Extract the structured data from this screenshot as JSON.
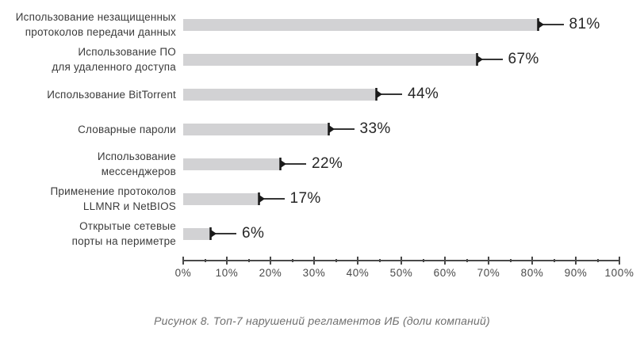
{
  "chart_data": {
    "type": "bar",
    "orientation": "horizontal",
    "title": "",
    "xlabel": "",
    "ylabel": "",
    "categories": [
      "Использование незащищенных\nпротоколов передачи данных",
      "Использование ПО\nдля удаленного доступа",
      "Использование BitTorrent",
      "Словарные пароли",
      "Использование\nмессенджеров",
      "Применение протоколов\nLLMNR и NetBIOS",
      "Открытые сетевые\nпорты на периметре"
    ],
    "values": [
      81,
      67,
      44,
      33,
      22,
      17,
      6
    ],
    "value_labels": [
      "81%",
      "67%",
      "44%",
      "33%",
      "22%",
      "17%",
      "6%"
    ],
    "xlim": [
      0,
      100
    ],
    "x_tick_labels": [
      "0%",
      "10%",
      "20%",
      "30%",
      "40%",
      "50%",
      "60%",
      "70%",
      "80%",
      "90%",
      "100%"
    ],
    "x_minor_ticks": [
      5,
      15,
      25,
      35,
      45,
      55,
      65,
      75,
      85,
      95
    ],
    "grid": false,
    "legend": false,
    "bar_color": "#d2d2d4",
    "marker_color": "#1a1a1a",
    "axis_color": "#4a4a4a"
  },
  "caption": "Рисунок 8. Топ-7 нарушений регламентов ИБ (доли компаний)"
}
